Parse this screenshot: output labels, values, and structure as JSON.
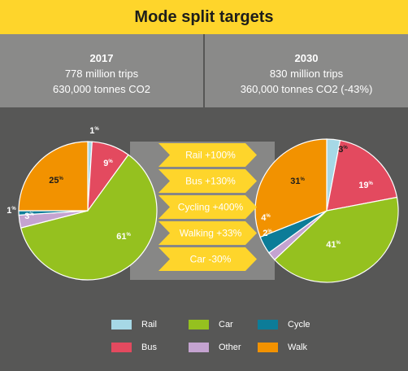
{
  "title": "Mode split targets",
  "panels": {
    "left": {
      "year": "2017",
      "line1": "778 million trips",
      "line2": "630,000 tonnes CO2"
    },
    "right": {
      "year": "2030",
      "line1": "830 million trips",
      "line2": "360,000 tonnes CO2 (-43%)"
    }
  },
  "colors": {
    "Rail": "#a6d8e6",
    "Bus": "#e34a5f",
    "Car": "#95c11f",
    "Other": "#c4a3d0",
    "Cycle": "#0c7c98",
    "Walk": "#f29200"
  },
  "chart_data": [
    {
      "type": "pie",
      "title": "2017",
      "slices": [
        {
          "name": "Rail",
          "value": 1,
          "label": "1"
        },
        {
          "name": "Bus",
          "value": 9,
          "label": "9"
        },
        {
          "name": "Car",
          "value": 61,
          "label": "61"
        },
        {
          "name": "Other",
          "value": 3,
          "label": "3"
        },
        {
          "name": "Cycle",
          "value": 1,
          "label": "1"
        },
        {
          "name": "Walk",
          "value": 25,
          "label": "25"
        }
      ]
    },
    {
      "type": "pie",
      "title": "2030",
      "slices": [
        {
          "name": "Rail",
          "value": 3,
          "label": "3"
        },
        {
          "name": "Bus",
          "value": 19,
          "label": "19"
        },
        {
          "name": "Car",
          "value": 41,
          "label": "41"
        },
        {
          "name": "Other",
          "value": 2,
          "label": "2"
        },
        {
          "name": "Cycle",
          "value": 4,
          "label": "4"
        },
        {
          "name": "Walk",
          "value": 31,
          "label": "31"
        }
      ]
    }
  ],
  "percent_symbol": "%",
  "changes": [
    "Rail +100%",
    "Bus +130%",
    "Cycling +400%",
    "Walking +33%",
    "Car -30%"
  ],
  "legend": [
    "Rail",
    "Car",
    "Cycle",
    "Bus",
    "Other",
    "Walk"
  ]
}
